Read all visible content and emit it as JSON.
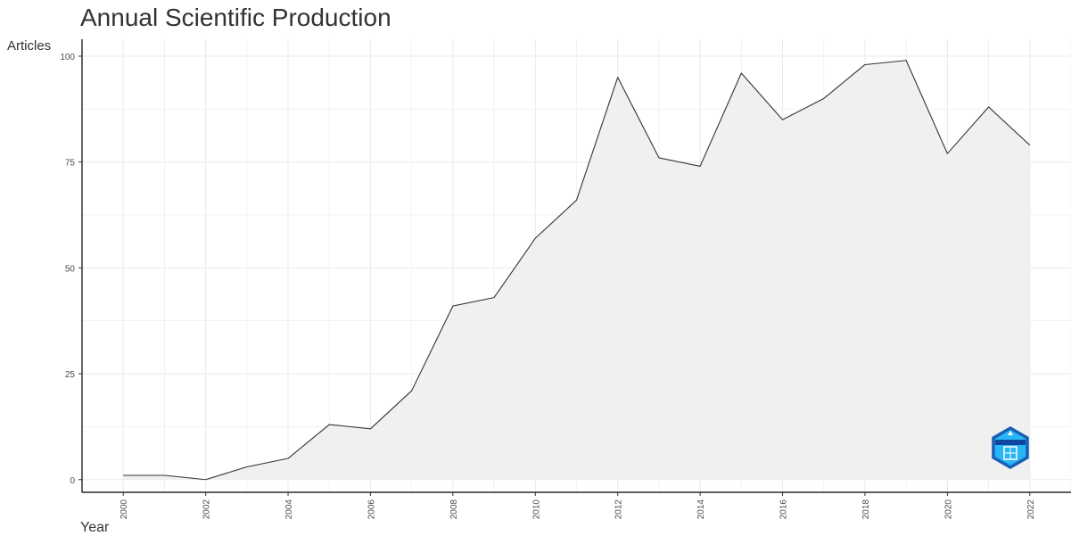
{
  "chart_data": {
    "type": "area",
    "title": "Annual Scientific Production",
    "xlabel": "Year",
    "ylabel": "Articles",
    "x": [
      2000,
      2001,
      2002,
      2003,
      2004,
      2005,
      2006,
      2007,
      2008,
      2009,
      2010,
      2011,
      2012,
      2013,
      2014,
      2015,
      2016,
      2017,
      2018,
      2019,
      2020,
      2021,
      2022
    ],
    "series": [
      {
        "values": [
          1,
          1,
          0,
          3,
          5,
          13,
          12,
          21,
          41,
          43,
          57,
          66,
          95,
          76,
          74,
          96,
          85,
          90,
          98,
          99,
          77,
          88,
          79
        ]
      }
    ],
    "xticks": [
      "2000",
      "2002",
      "2004",
      "2006",
      "2008",
      "2010",
      "2012",
      "2014",
      "2016",
      "2018",
      "2020",
      "2022"
    ],
    "yticks": [
      "0",
      "25",
      "50",
      "75",
      "100"
    ],
    "xlim": [
      1999,
      2023
    ],
    "ylim": [
      -3,
      104
    ],
    "grid": true,
    "line_color": "#333333",
    "fill_color": "#f0f0f0",
    "grid_color": "#ebebeb"
  },
  "logo": {
    "name": "bibliometrix-logo",
    "colors": [
      "#1a5fb4",
      "#29b6f6"
    ]
  }
}
